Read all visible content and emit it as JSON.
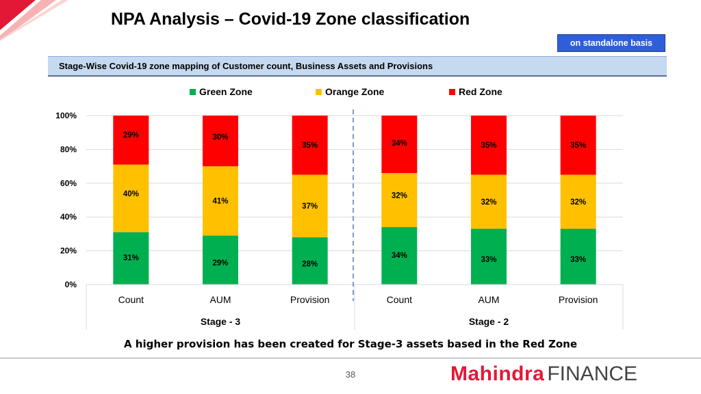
{
  "page": {
    "title": "NPA Analysis – Covid-19 Zone classification",
    "basis_label": "on standalone basis",
    "section_heading": "Stage-Wise Covid-19 zone mapping of Customer count, Business Assets and Provisions",
    "footnote": "A higher provision has been created for Stage-3 assets based in the Red Zone",
    "page_number": "38",
    "logo": {
      "brand": "Mahindra",
      "suffix": "FINANCE"
    }
  },
  "colors": {
    "green": "#00b050",
    "orange": "#ffc000",
    "red": "#ff0000",
    "grid": "#d9d9d9",
    "divider": "#5b7fbf"
  },
  "chart_data": {
    "type": "bar",
    "stacked": true,
    "percent_stacked": true,
    "categories": [
      "Count",
      "AUM",
      "Provision",
      "Count",
      "AUM",
      "Provision"
    ],
    "groups": [
      {
        "label": "Stage - 3",
        "categories": [
          "Count",
          "AUM",
          "Provision"
        ]
      },
      {
        "label": "Stage - 2",
        "categories": [
          "Count",
          "AUM",
          "Provision"
        ]
      }
    ],
    "series": [
      {
        "name": "Green Zone",
        "color": "#00b050",
        "values": [
          31,
          29,
          28,
          34,
          33,
          33
        ],
        "labels": [
          "31%",
          "29%",
          "28%",
          "34%",
          "33%",
          "33%"
        ]
      },
      {
        "name": "Orange  Zone",
        "color": "#ffc000",
        "values": [
          40,
          41,
          37,
          32,
          32,
          32
        ],
        "labels": [
          "40%",
          "41%",
          "37%",
          "32%",
          "32%",
          "32%"
        ]
      },
      {
        "name": "Red  Zone",
        "color": "#ff0000",
        "values": [
          29,
          30,
          35,
          34,
          35,
          35
        ],
        "labels": [
          "29%",
          "30%",
          "35%",
          "34%",
          "35%",
          "35%"
        ]
      }
    ],
    "y_ticks": [
      "0%",
      "20%",
      "40%",
      "60%",
      "80%",
      "100%"
    ],
    "ylim": [
      0,
      100
    ],
    "grid": true,
    "legend": "top"
  }
}
